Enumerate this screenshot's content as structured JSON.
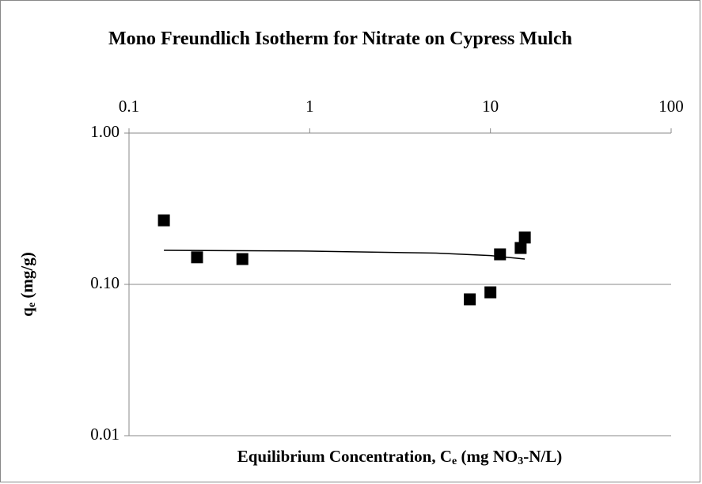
{
  "chart_data": {
    "type": "scatter",
    "title": "Mono Freundlich Isotherm for Nitrate on  Cypress Mulch",
    "xlabel": [
      "Equilibrium Concentration, C",
      "e",
      " (mg NO",
      "3",
      "-N/L)"
    ],
    "ylabel": [
      "q",
      "e",
      " (mg/g)"
    ],
    "xscale": "log",
    "yscale": "log",
    "xlim": [
      0.1,
      100
    ],
    "xticks": [
      0.1,
      1,
      10,
      100
    ],
    "ylim": [
      0.01,
      1
    ],
    "yticks": [
      {
        "value": 0.01,
        "label": "0.01"
      },
      {
        "value": 0.1,
        "label": "0.10"
      },
      {
        "value": 1,
        "label": "1.00"
      }
    ],
    "grid": true,
    "legend": false,
    "series": [
      {
        "color": "#000000",
        "marker": "square",
        "x": [
          0.156,
          0.238,
          0.424,
          7.69,
          10.0,
          11.3,
          14.7,
          15.5
        ],
        "values": [
          0.265,
          0.151,
          0.147,
          0.0796,
          0.0886,
          0.158,
          0.174,
          0.204
        ]
      },
      {
        "color": "#000000",
        "marker": "line",
        "x": [
          0.156,
          1,
          5,
          10,
          15.5
        ],
        "values": [
          0.168,
          0.166,
          0.161,
          0.155,
          0.147
        ]
      }
    ]
  }
}
